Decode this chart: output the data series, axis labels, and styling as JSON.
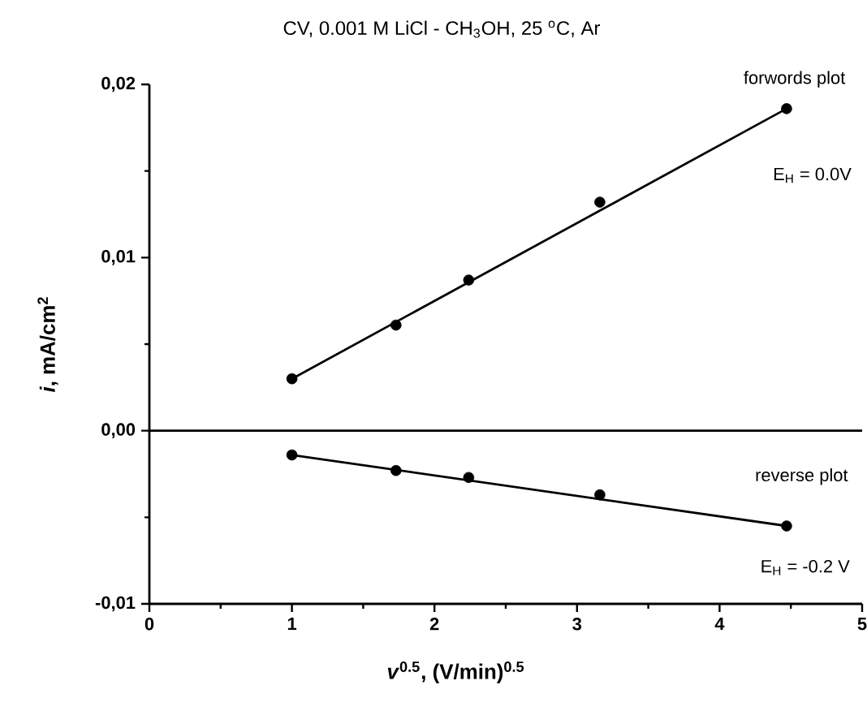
{
  "chart_data": {
    "type": "scatter",
    "title": "CV, 0.001 M LiCl - CH$_{3}$OH, 25 $^{o}$C, Ar",
    "xlabel": "*v*$^{0.5}$, (V/min)$^{0.5}$",
    "ylabel": "*i*, mA/cm$^{2}$",
    "xlim": [
      0,
      5
    ],
    "ylim": [
      -0.01,
      0.02
    ],
    "xticks": [
      0,
      {
        "value": 0.5,
        "label": null
      },
      1,
      {
        "value": 1.5,
        "label": null
      },
      2,
      {
        "value": 2.5,
        "label": null
      },
      3,
      {
        "value": 3.5,
        "label": null
      },
      4,
      {
        "value": 4.5,
        "label": null
      },
      5
    ],
    "yticks": [
      {
        "value": -0.01,
        "label": "-0,01"
      },
      {
        "value": -0.005,
        "label": null
      },
      {
        "value": 0,
        "label": "0,00"
      },
      {
        "value": 0.005,
        "label": null
      },
      {
        "value": 0.01,
        "label": "0,01"
      },
      {
        "value": 0.015,
        "label": null
      },
      {
        "value": 0.02,
        "label": "0,02"
      }
    ],
    "marker": "circle",
    "grid": false,
    "series": [
      {
        "color": "#000000",
        "x": [
          1,
          1.73,
          2.24,
          3.16,
          4.47
        ],
        "values": [
          0.003,
          0.0061,
          0.0087,
          0.0132,
          0.0186
        ]
      },
      {
        "type": "line",
        "marker": "none",
        "color": "#000000",
        "x": [
          1,
          4.47
        ],
        "values": [
          0.003,
          0.0186
        ]
      },
      {
        "color": "#000000",
        "x": [
          1,
          1.73,
          2.24,
          3.16,
          4.47
        ],
        "values": [
          -0.0014,
          -0.0023,
          -0.0027,
          -0.0037,
          -0.0055
        ]
      },
      {
        "type": "line",
        "marker": "none",
        "color": "#000000",
        "x": [
          1,
          4.47
        ],
        "values": [
          -0.0014,
          -0.0055
        ]
      }
    ],
    "ref_lines": [
      {
        "axis": "y",
        "value": 0,
        "color": "#000000"
      }
    ],
    "annotations": [
      "forwords plot",
      "E$_{H}$ = 0.0V",
      "reverse plot",
      "E$_{H}$ = -0.2 V"
    ]
  }
}
